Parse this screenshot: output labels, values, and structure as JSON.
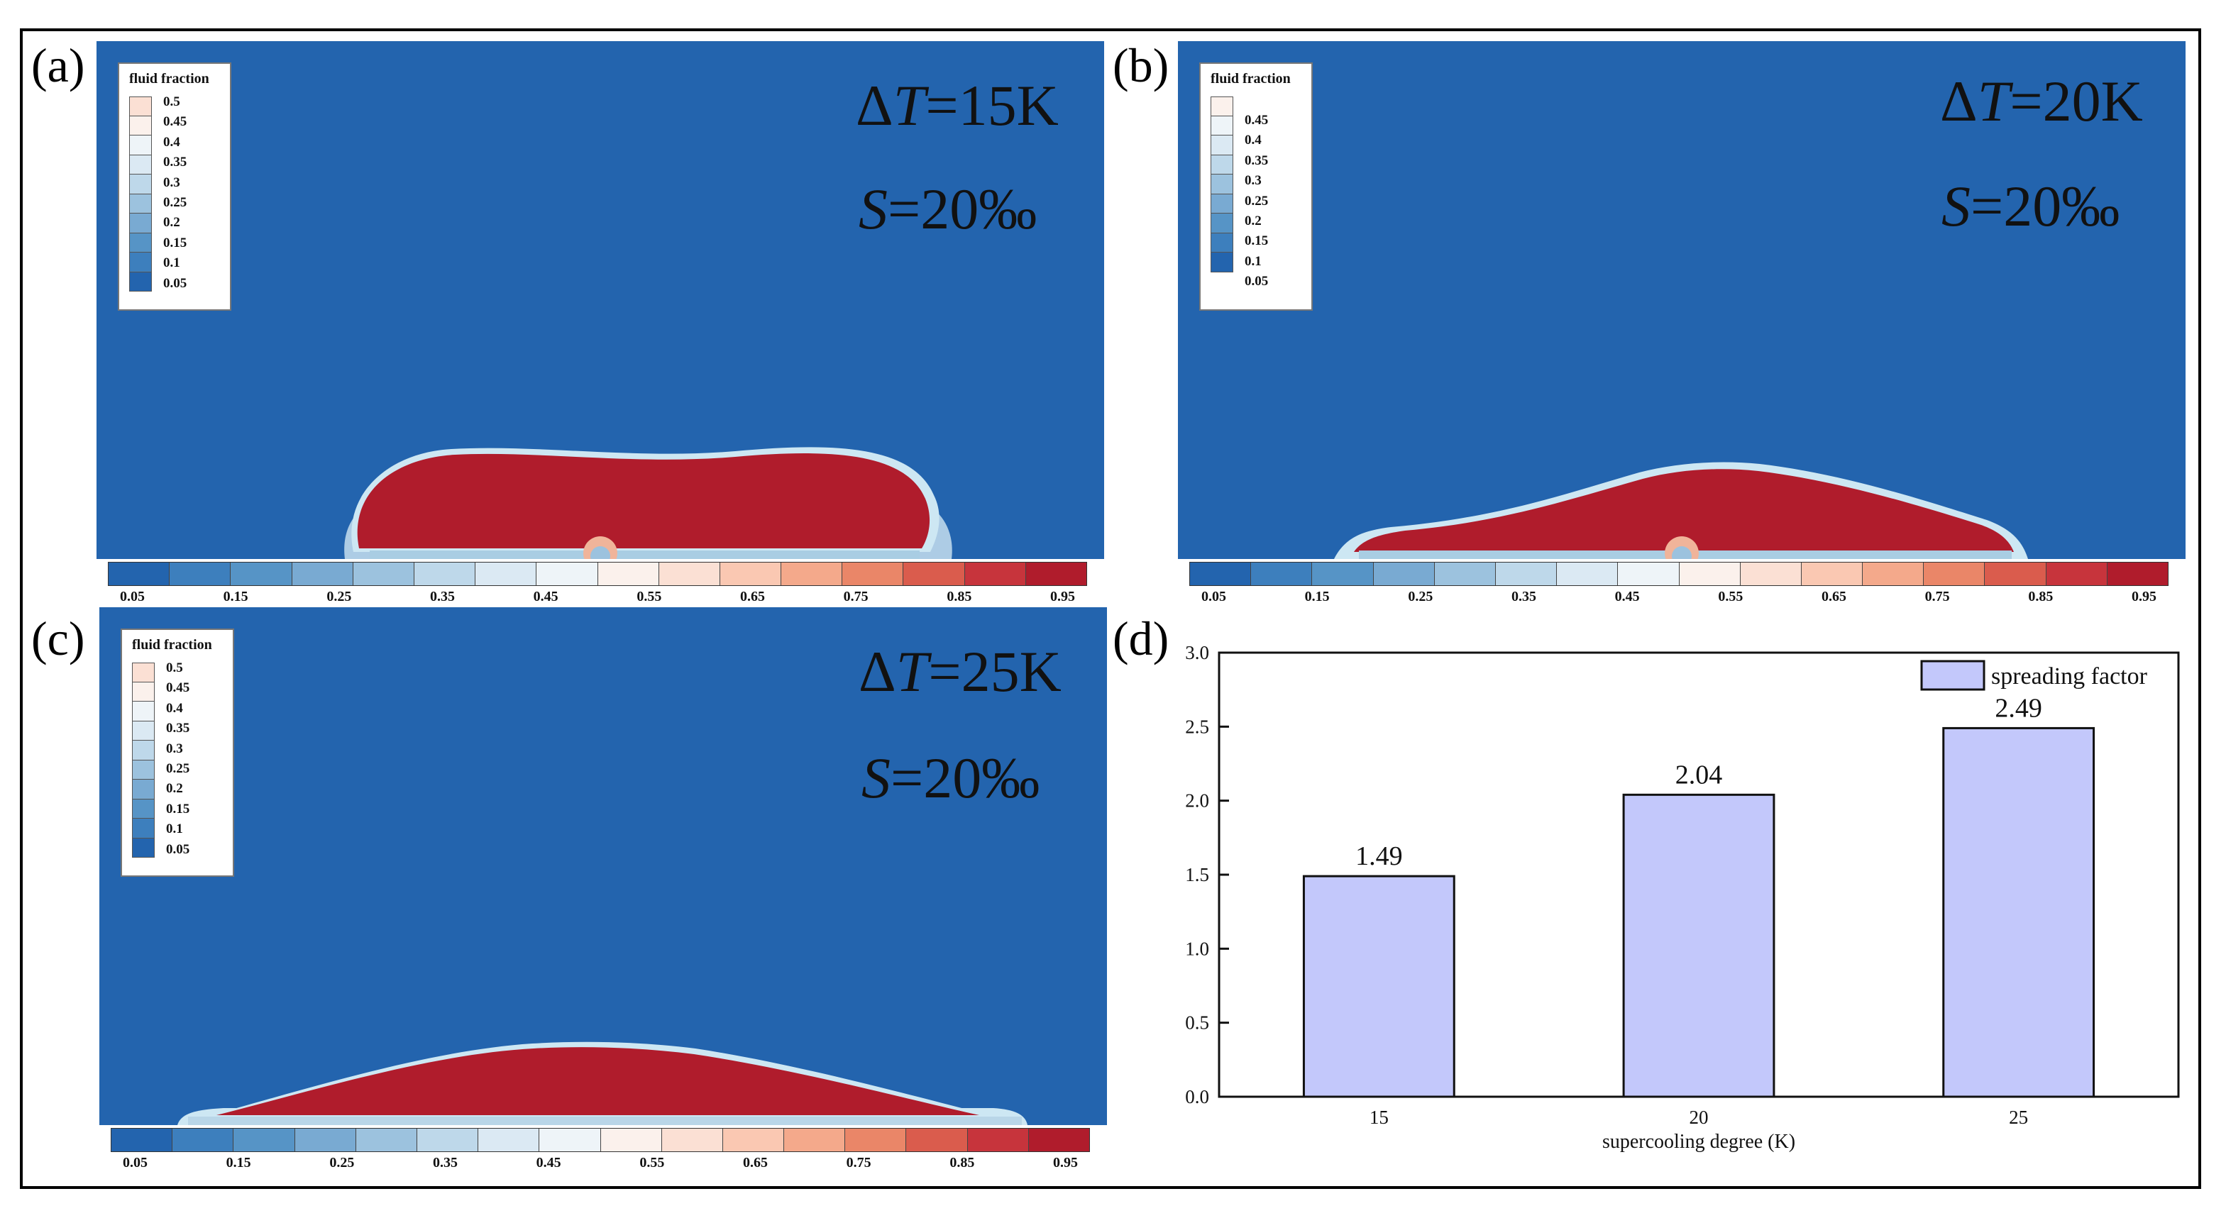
{
  "panels": {
    "a": {
      "label": "(a)",
      "delta_t": "15K",
      "s_value": "20‰"
    },
    "b": {
      "label": "(b)",
      "delta_t": "20K",
      "s_value": "20‰"
    },
    "c": {
      "label": "(c)",
      "delta_t": "25K",
      "s_value": "20‰"
    },
    "d": {
      "label": "(d)"
    }
  },
  "annotation": {
    "delta_symbol": "Δ",
    "t_symbol": "T",
    "eq": "=",
    "s_symbol": "S"
  },
  "legend": {
    "title": "fluid fraction",
    "levels_a": [
      "0.5",
      "0.45",
      "0.4",
      "0.35",
      "0.3",
      "0.25",
      "0.2",
      "0.15",
      "0.1",
      "0.05"
    ],
    "levels_b": [
      "0.45",
      "0.4",
      "0.35",
      "0.3",
      "0.25",
      "0.2",
      "0.15",
      "0.1",
      "0.05"
    ],
    "levels_c": [
      "0.5",
      "0.45",
      "0.4",
      "0.35",
      "0.3",
      "0.25",
      "0.2",
      "0.15",
      "0.1",
      "0.05"
    ]
  },
  "colorbar": {
    "ticks": [
      "0.05",
      "0.15",
      "0.25",
      "0.35",
      "0.45",
      "0.55",
      "0.65",
      "0.75",
      "0.85",
      "0.95"
    ],
    "colors": [
      "#2364ae",
      "#3d7fbd",
      "#5694c6",
      "#79aad2",
      "#9cc2de",
      "#bed8ea",
      "#dbe9f3",
      "#eef4f8",
      "#fbf1ec",
      "#fbe0d4",
      "#fac8b2",
      "#f4a98b",
      "#ea8668",
      "#da5c4d",
      "#c7343c",
      "#b01c2c"
    ]
  },
  "colors": {
    "sim_background": "#2364ae",
    "droplet": "#b01c2c",
    "bar_fill": "#c3c8fb",
    "bar_stroke": "#111111"
  },
  "chart_data": {
    "type": "bar",
    "categories": [
      "15",
      "20",
      "25"
    ],
    "series": [
      {
        "name": "spreading factor",
        "values": [
          1.49,
          2.04,
          2.49
        ]
      }
    ],
    "data_labels": [
      "1.49",
      "2.04",
      "2.49"
    ],
    "xlabel": "supercooling degree (K)",
    "ylabel": "",
    "ylim": [
      0,
      3.0
    ],
    "yticks": [
      "0.0",
      "0.5",
      "1.0",
      "1.5",
      "2.0",
      "2.5",
      "3.0"
    ],
    "grid": false,
    "legend_position": "top-right"
  }
}
